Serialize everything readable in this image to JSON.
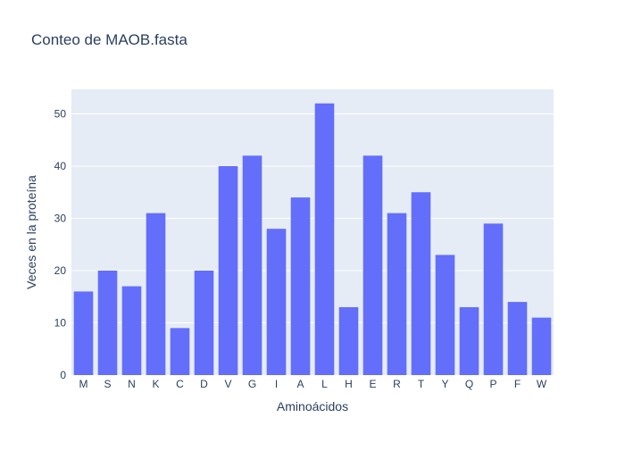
{
  "chart_data": {
    "type": "bar",
    "title": "Conteo de MAOB.fasta",
    "xlabel": "Aminoácidos",
    "ylabel": "Veces en la proteína",
    "categories": [
      "M",
      "S",
      "N",
      "K",
      "C",
      "D",
      "V",
      "G",
      "I",
      "A",
      "L",
      "H",
      "E",
      "R",
      "T",
      "Y",
      "Q",
      "P",
      "F",
      "W"
    ],
    "values": [
      16,
      20,
      17,
      31,
      9,
      20,
      40,
      42,
      28,
      34,
      52,
      13,
      42,
      31,
      35,
      23,
      13,
      29,
      14,
      11
    ],
    "ylim": [
      0,
      54.7
    ],
    "yticks": [
      0,
      10,
      20,
      30,
      40,
      50
    ],
    "grid": true,
    "colors": {
      "bar": "#636efa",
      "plot_background": "#e5ecf6",
      "grid": "#ffffff",
      "text": "#2a3f5f"
    }
  }
}
